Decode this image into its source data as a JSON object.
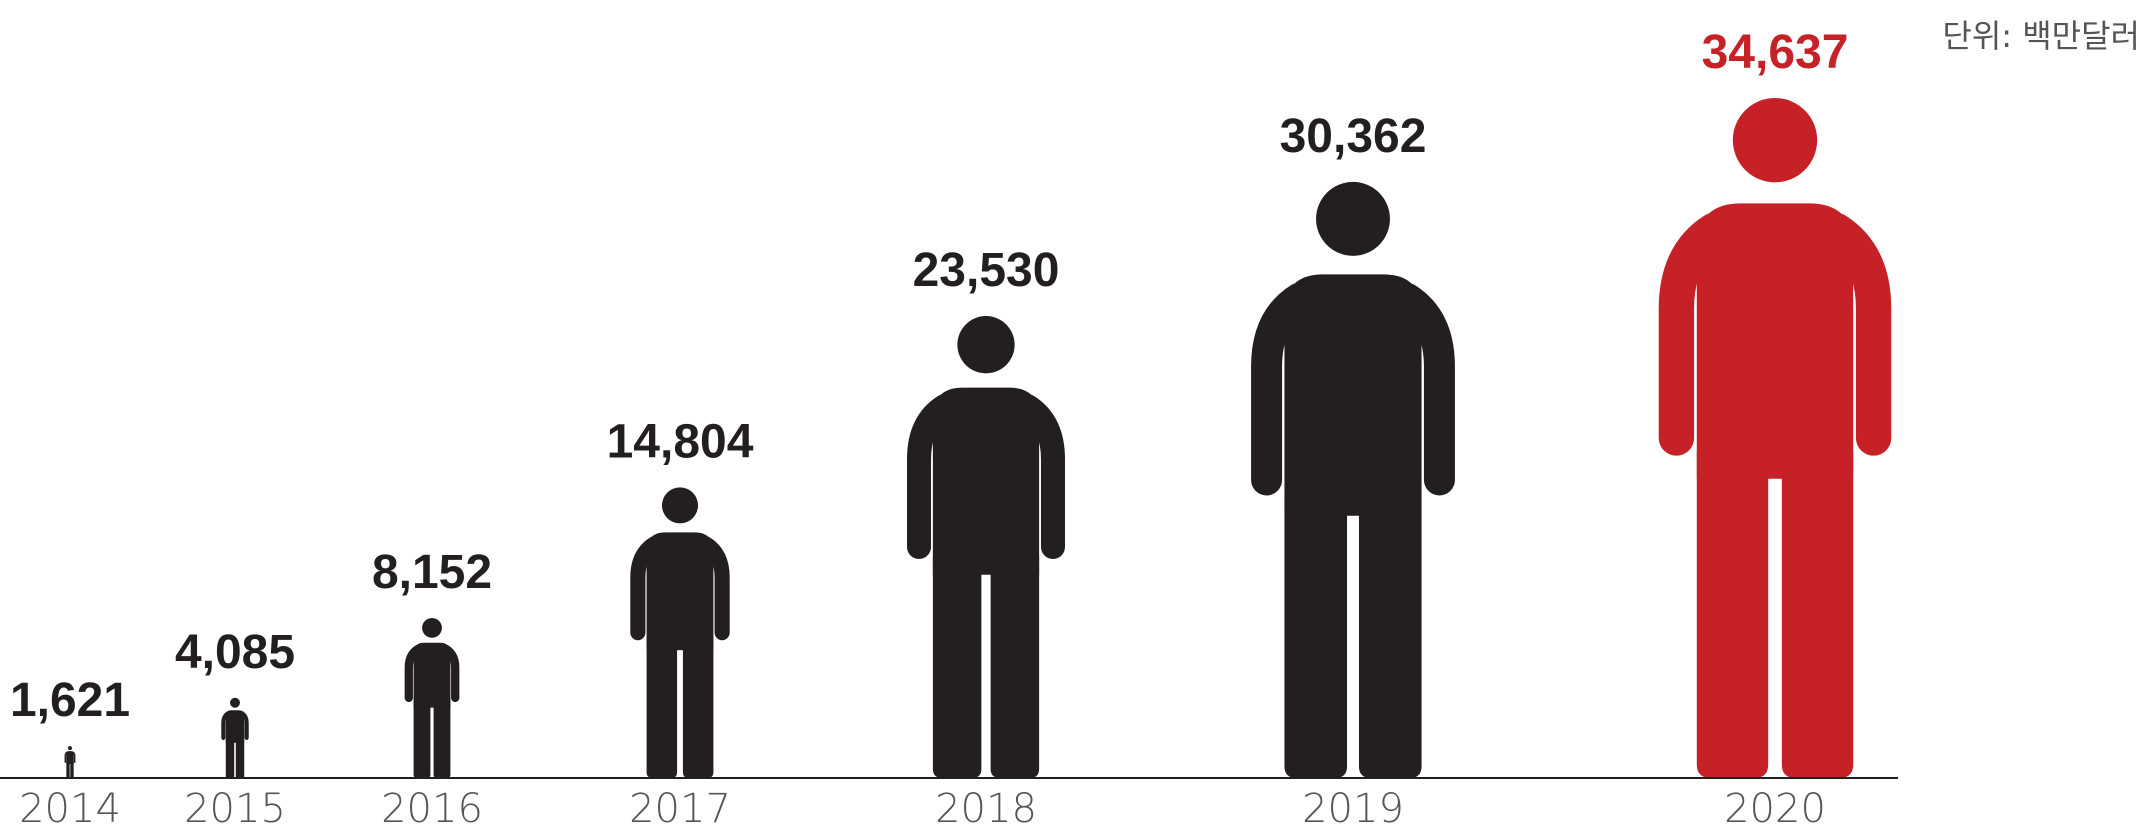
{
  "unit_label": "단위: 백만달러",
  "colors": {
    "figure": "#231F20",
    "highlight": "#C62127",
    "axis_text": "#555555",
    "axis": "#231F20"
  },
  "chart_data": {
    "type": "bar",
    "categories": [
      "2014",
      "2015",
      "2016",
      "2017",
      "2018",
      "2019",
      "2020"
    ],
    "values": [
      1621,
      4085,
      8152,
      14804,
      23530,
      30362,
      34637
    ],
    "value_labels": [
      "1,621",
      "4,085",
      "8,152",
      "14,804",
      "23,530",
      "30,362",
      "34,637"
    ],
    "highlight_index": 6,
    "mark": "person-icon"
  }
}
